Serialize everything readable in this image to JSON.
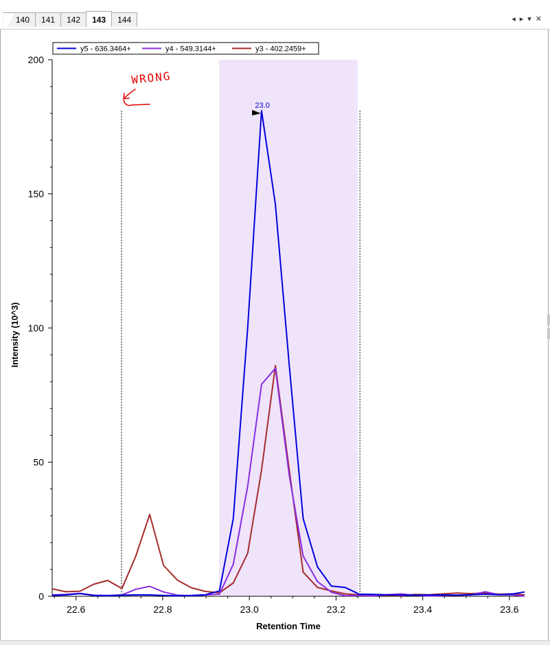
{
  "tabs": [
    {
      "label": "140",
      "active": false
    },
    {
      "label": "141",
      "active": false
    },
    {
      "label": "142",
      "active": false
    },
    {
      "label": "143",
      "active": true
    },
    {
      "label": "144",
      "active": false
    }
  ],
  "tab_controls": {
    "prev": "◂",
    "next": "▸",
    "menu": "▾",
    "close": "✕"
  },
  "annotation": {
    "text": "WRONG",
    "color": "#e00000"
  },
  "peak_label": {
    "text": "23.0",
    "x": 23.03,
    "y": 180
  },
  "chart_data": {
    "type": "line",
    "xlabel": "Retention Time",
    "ylabel": "Intensity (10^3)",
    "xlim": [
      22.545,
      23.635
    ],
    "ylim": [
      0,
      200
    ],
    "x_ticks": [
      22.6,
      22.8,
      23.0,
      23.2,
      23.4,
      23.6
    ],
    "x_tick_labels": [
      "22.6",
      "22.8",
      "23.0",
      "23.2",
      "23.4",
      "23.6"
    ],
    "y_ticks": [
      0,
      50,
      100,
      150,
      200
    ],
    "y_tick_labels": [
      "0",
      "50",
      "100",
      "150",
      "200"
    ],
    "y_minor_step": 10,
    "grid": false,
    "legend_position": "top-left",
    "integration_region": {
      "start": 22.93,
      "end": 23.25,
      "color": "#efe4fa"
    },
    "boundary_lines": [
      22.705,
      23.255
    ],
    "series": [
      {
        "name": "y5 - 636.3464+",
        "color": "#0000dd",
        "x": [
          22.545,
          22.576,
          22.609,
          22.641,
          22.673,
          22.706,
          22.738,
          22.77,
          22.802,
          22.834,
          22.866,
          22.899,
          22.931,
          22.963,
          22.996,
          23.028,
          23.06,
          23.092,
          23.124,
          23.157,
          23.189,
          23.221,
          23.253,
          23.286,
          23.318,
          23.35,
          23.382,
          23.415,
          23.447,
          23.479,
          23.511,
          23.544,
          23.576,
          23.608,
          23.635
        ],
        "y": [
          0.3,
          0.5,
          1.0,
          0.3,
          0.2,
          0.4,
          0.5,
          0.5,
          0.3,
          0.2,
          0.3,
          0.6,
          2.0,
          29,
          100,
          181,
          146,
          86,
          29,
          11,
          3.8,
          3.3,
          0.8,
          0.7,
          0.6,
          0.4,
          0.4,
          0.5,
          0.5,
          0.4,
          0.6,
          0.8,
          0.6,
          0.9,
          1.6
        ]
      },
      {
        "name": "y4 - 549.3144+",
        "color": "#8a2be2",
        "x": [
          22.545,
          22.576,
          22.609,
          22.641,
          22.673,
          22.706,
          22.738,
          22.77,
          22.802,
          22.834,
          22.866,
          22.899,
          22.931,
          22.963,
          22.996,
          23.028,
          23.06,
          23.092,
          23.124,
          23.157,
          23.189,
          23.221,
          23.253,
          23.286,
          23.318,
          23.35,
          23.382,
          23.415,
          23.447,
          23.479,
          23.511,
          23.544,
          23.576,
          23.608,
          23.635
        ],
        "y": [
          0.5,
          0.7,
          1.1,
          0.4,
          0.3,
          0.5,
          2.6,
          3.7,
          1.6,
          0.4,
          0.2,
          0.5,
          0.8,
          12,
          41,
          79,
          85,
          45,
          15,
          5.5,
          1.5,
          0.2,
          0.3,
          0.2,
          0.6,
          0.9,
          0.4,
          0.1,
          0.3,
          0.4,
          0.5,
          1.7,
          0.6,
          0.5,
          0.1
        ]
      },
      {
        "name": "y3 - 402.2459+",
        "color": "#a52a2a",
        "x": [
          22.545,
          22.576,
          22.609,
          22.641,
          22.673,
          22.706,
          22.738,
          22.77,
          22.802,
          22.834,
          22.866,
          22.899,
          22.931,
          22.963,
          22.996,
          23.028,
          23.06,
          23.092,
          23.124,
          23.157,
          23.189,
          23.221,
          23.253,
          23.286,
          23.318,
          23.35,
          23.382,
          23.415,
          23.447,
          23.479,
          23.511,
          23.544,
          23.576,
          23.608,
          23.635
        ],
        "y": [
          2.8,
          1.7,
          1.9,
          4.5,
          5.9,
          2.9,
          15,
          30.5,
          11.5,
          6.0,
          3.2,
          1.8,
          1.3,
          5.0,
          16,
          47,
          86,
          47,
          9,
          3.3,
          2.0,
          0.9,
          0.5,
          0.4,
          0.3,
          0.2,
          0.7,
          0.6,
          0.9,
          1.2,
          1.0,
          1.2,
          0.8,
          0.9,
          0.5
        ]
      }
    ]
  }
}
